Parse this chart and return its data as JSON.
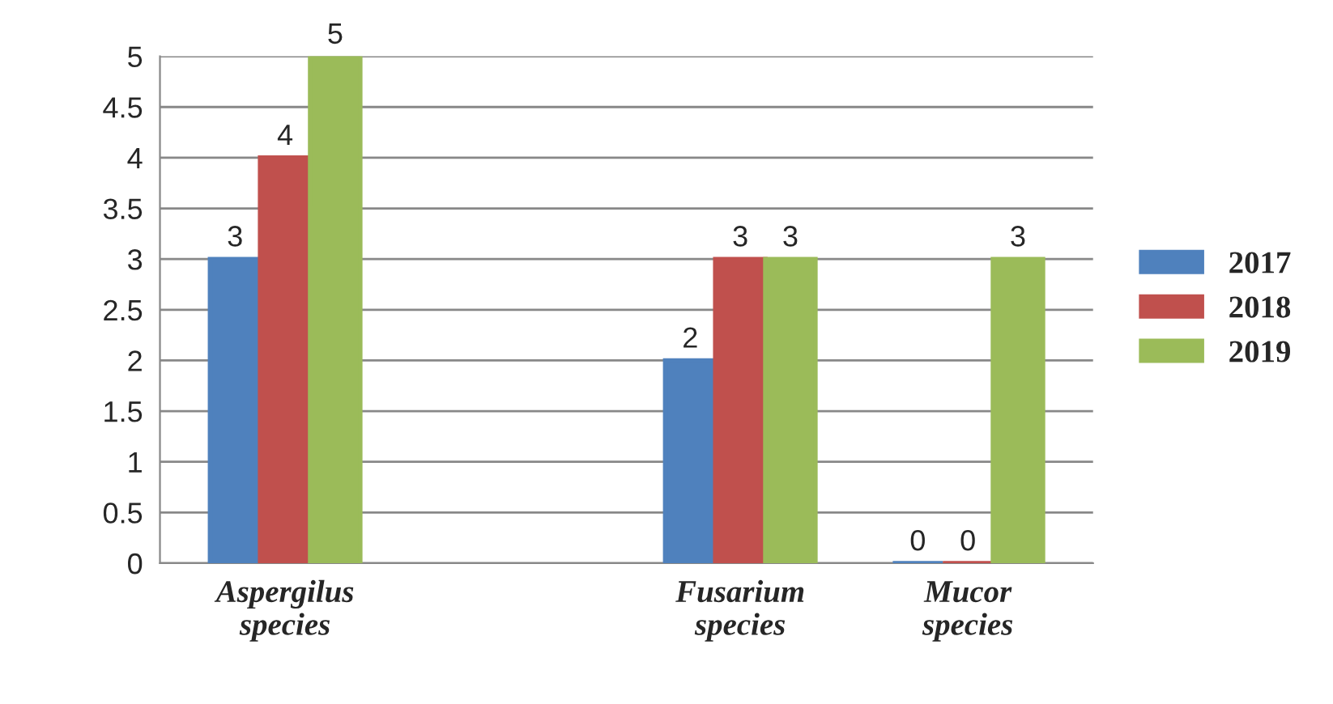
{
  "chart_data": {
    "type": "bar",
    "categories": [
      "Aspergilus\nspecies",
      null,
      "Fusarium\nspecies",
      "Mucor\nspecies"
    ],
    "series": [
      {
        "name": "2017",
        "color": "#4f81bd",
        "values": [
          3,
          null,
          2,
          0
        ]
      },
      {
        "name": "2018",
        "color": "#c0504d",
        "values": [
          4,
          null,
          3,
          0
        ]
      },
      {
        "name": "2019",
        "color": "#9bbb59",
        "values": [
          5,
          null,
          3,
          3
        ]
      }
    ],
    "ylim": [
      0,
      5
    ],
    "yticks": [
      0,
      0.5,
      1,
      1.5,
      2,
      2.5,
      3,
      3.5,
      4,
      4.5,
      5
    ],
    "grid": "y",
    "legend": "right",
    "data_labels": true
  }
}
